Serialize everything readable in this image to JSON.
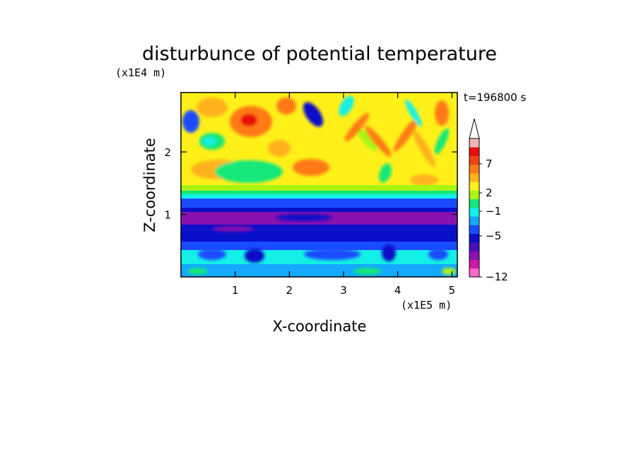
{
  "chart_data": {
    "type": "heatmap",
    "title": "disturbunce of potential temperature",
    "xlabel": "X-coordinate",
    "ylabel": "Z-coordinate",
    "x_unit": "(x1E5 m)",
    "y_unit": "(x1E4 m)",
    "time_label": "t=196800 s",
    "xlim": [
      0,
      5.1
    ],
    "ylim": [
      0,
      2.95
    ],
    "x_ticks": [
      "1",
      "2",
      "3",
      "4",
      "5"
    ],
    "x_tick_values": [
      1,
      2,
      3,
      4,
      5
    ],
    "y_ticks": [
      "1",
      "2"
    ],
    "y_tick_values": [
      1,
      2
    ],
    "colorbar": {
      "tick_labels": [
        "7",
        "2",
        "−1",
        "−5",
        "−12"
      ],
      "tick_values": [
        7,
        2,
        -1,
        -5,
        -12
      ],
      "colors": [
        "#ff66cc",
        "#cc1aa8",
        "#8811b0",
        "#4a10b8",
        "#0a10c8",
        "#1a4cff",
        "#14a8ff",
        "#14f0e6",
        "#14e87a",
        "#a8f514",
        "#fff01a",
        "#ffb21a",
        "#ff7a14",
        "#f04614",
        "#e81010",
        "#f0b4b4"
      ],
      "extend": "max"
    },
    "layers": [
      {
        "z_range": [
          0,
          0.15
        ],
        "description": "near-surface mixed band",
        "dominant_value": -3
      },
      {
        "z_range": [
          0.15,
          0.5
        ],
        "value": -2
      },
      {
        "z_range": [
          0.5,
          0.85
        ],
        "value": -5
      },
      {
        "z_range": [
          0.85,
          1.05
        ],
        "value": -7
      },
      {
        "z_range": [
          1.05,
          1.3
        ],
        "value": -5
      },
      {
        "z_range": [
          1.3,
          1.45
        ],
        "value": -3
      },
      {
        "z_range": [
          1.45,
          2.95
        ],
        "value": 2
      }
    ]
  }
}
